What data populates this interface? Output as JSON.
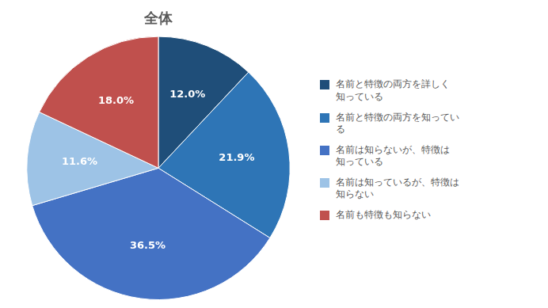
{
  "chart_data": {
    "type": "pie",
    "title": "全体",
    "categories": [
      "名前と特徴の両方を詳しく\n知っている",
      "名前と特徴の両方を知ってい\nる",
      "名前は知らないが、特徴は\n知っている",
      "名前は知っているが、特徴は\n知らない",
      "名前も特徴も知らない"
    ],
    "values": [
      12.0,
      21.9,
      36.5,
      11.6,
      18.0
    ],
    "value_labels": [
      "12.0%",
      "21.9%",
      "36.5%",
      "11.6%",
      "18.0%"
    ],
    "colors": [
      "#1f4e79",
      "#2e75b6",
      "#4472c4",
      "#9dc3e6",
      "#c0504d"
    ],
    "data_labels": true,
    "legend": "right"
  }
}
